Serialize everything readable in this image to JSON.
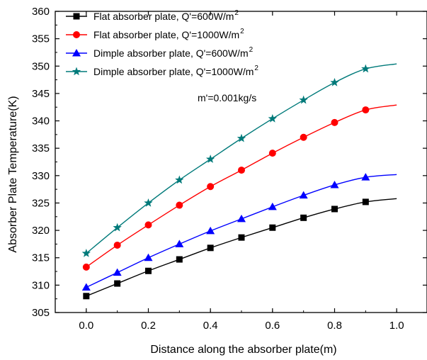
{
  "chart_data": {
    "type": "line",
    "xlabel": "Distance along the absorber plate(m)",
    "ylabel": "Absorber Plate Temperature(K)",
    "xlim": [
      -0.1,
      1.1
    ],
    "ylim": [
      305,
      360
    ],
    "xticks": [
      "0.0",
      "0.2",
      "0.4",
      "0.6",
      "0.8",
      "1.0"
    ],
    "yticks": [
      "305",
      "310",
      "315",
      "320",
      "325",
      "330",
      "335",
      "340",
      "345",
      "350",
      "355",
      "360"
    ],
    "xtick_values": [
      0,
      0.2,
      0.4,
      0.6,
      0.8,
      1.0
    ],
    "ytick_values": [
      305,
      310,
      315,
      320,
      325,
      330,
      335,
      340,
      345,
      350,
      355,
      360
    ],
    "grid": false,
    "legend_position": "top-left",
    "annotation": "m'=0.001kg/s",
    "x": [
      0,
      0.1,
      0.2,
      0.3,
      0.4,
      0.5,
      0.6,
      0.7,
      0.8,
      0.9
    ],
    "series": [
      {
        "name": "Flat absorber plate, Q'=600W/m",
        "name_sup": "2",
        "marker": "square",
        "color": "#000000",
        "values": [
          308.0,
          310.3,
          312.6,
          314.7,
          316.8,
          318.7,
          320.5,
          322.3,
          323.9,
          325.2
        ],
        "curve_end": [
          1.0,
          325.8
        ]
      },
      {
        "name": "Flat absorber plate, Q'=1000W/m",
        "name_sup": "2",
        "marker": "circle",
        "color": "#ff0000",
        "values": [
          313.3,
          317.3,
          321.0,
          324.6,
          328.0,
          331.0,
          334.1,
          337.0,
          339.7,
          342.0
        ],
        "curve_end": [
          1.0,
          342.9
        ]
      },
      {
        "name": "Dimple absorber plate, Q'=600W/m",
        "name_sup": "2",
        "marker": "triangle",
        "color": "#0000ff",
        "values": [
          309.6,
          312.3,
          315.0,
          317.5,
          319.9,
          322.1,
          324.3,
          326.4,
          328.3,
          329.7
        ],
        "curve_end": [
          1.0,
          330.2
        ]
      },
      {
        "name": "Dimple absorber plate, Q'=1000W/m",
        "name_sup": "2",
        "marker": "star",
        "color": "#007a7a",
        "values": [
          315.8,
          320.5,
          325.0,
          329.2,
          333.0,
          336.8,
          340.4,
          343.8,
          347.0,
          349.5
        ],
        "curve_end": [
          1.0,
          350.4
        ]
      }
    ]
  }
}
